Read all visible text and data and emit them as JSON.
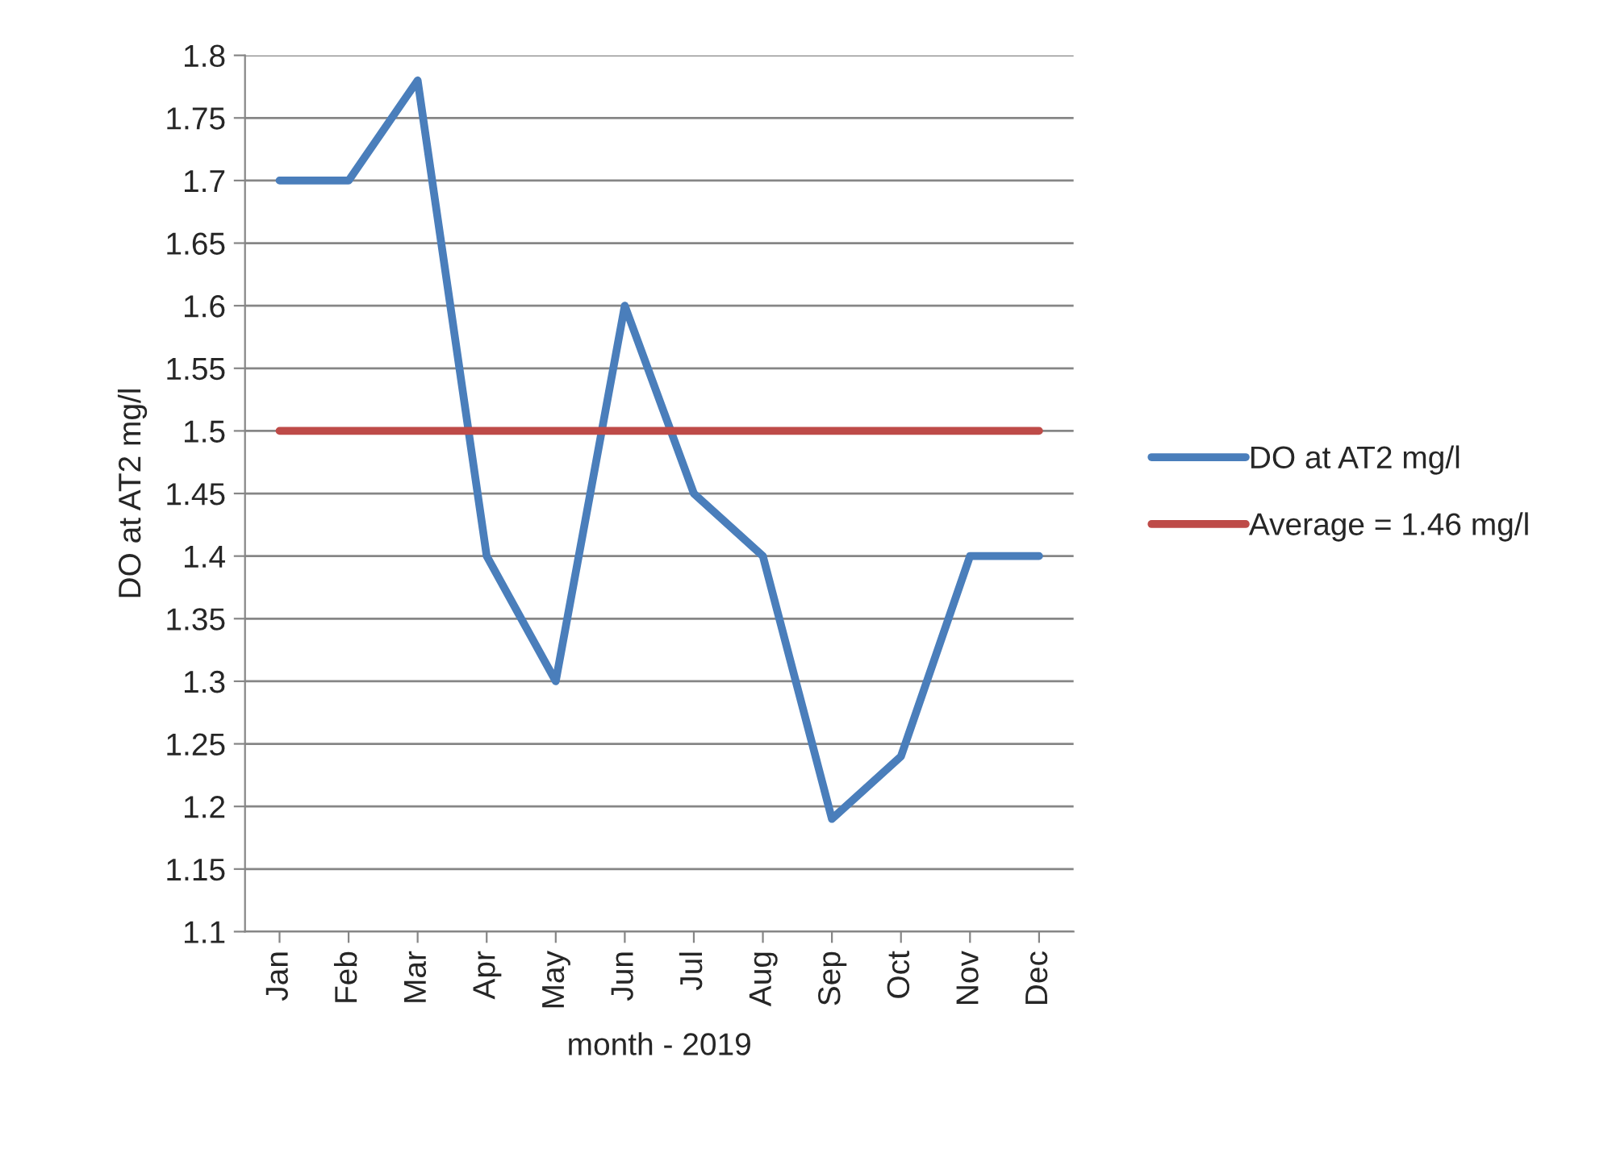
{
  "chart_data": {
    "type": "line",
    "xlabel": "month - 2019",
    "ylabel": "DO at AT2 mg/l",
    "categories": [
      "Jan",
      "Feb",
      "Mar",
      "Apr",
      "May",
      "Jun",
      "Jul",
      "Aug",
      "Sep",
      "Oct",
      "Nov",
      "Dec"
    ],
    "series": [
      {
        "name": "DO at AT2 mg/l",
        "color": "#4a7ebb",
        "values": [
          1.7,
          1.7,
          1.78,
          1.4,
          1.3,
          1.6,
          1.45,
          1.4,
          1.19,
          1.24,
          1.4,
          1.4
        ]
      },
      {
        "name": "Average = 1.46 mg/l",
        "color": "#be4b48",
        "values": [
          1.5,
          1.5,
          1.5,
          1.5,
          1.5,
          1.5,
          1.5,
          1.5,
          1.5,
          1.5,
          1.5,
          1.5
        ]
      }
    ],
    "ylim": [
      1.1,
      1.8
    ],
    "yticks": [
      1.1,
      1.15,
      1.2,
      1.25,
      1.3,
      1.35,
      1.4,
      1.45,
      1.5,
      1.55,
      1.6,
      1.65,
      1.7,
      1.75,
      1.8
    ],
    "grid": "y",
    "legend": "right",
    "marker": "none",
    "line_style": "solid"
  }
}
